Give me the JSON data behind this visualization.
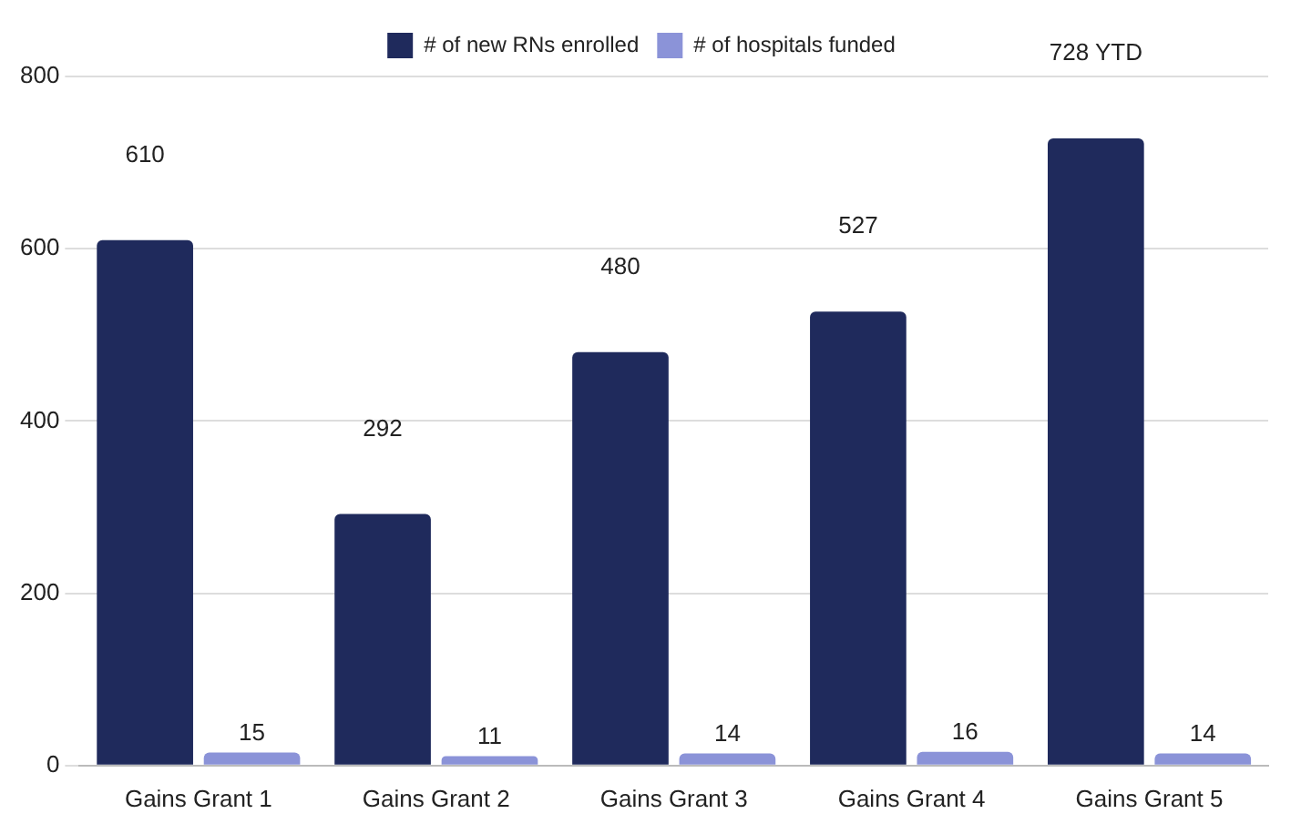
{
  "chart_data": {
    "type": "bar",
    "categories": [
      "Gains Grant 1",
      "Gains Grant 2",
      "Gains Grant 3",
      "Gains Grant 4",
      "Gains Grant 5"
    ],
    "series": [
      {
        "name": "# of new RNs enrolled",
        "color": "#1f2a5c",
        "values": [
          610,
          292,
          480,
          527,
          728
        ],
        "value_labels": [
          "610",
          "292",
          "480",
          "527",
          "728 YTD"
        ]
      },
      {
        "name": "# of hospitals funded",
        "color": "#8b93d8",
        "values": [
          15,
          11,
          14,
          16,
          14
        ],
        "value_labels": [
          "15",
          "11",
          "14",
          "16",
          "14"
        ]
      }
    ],
    "ylim": [
      0,
      800
    ],
    "yticks": [
      0,
      200,
      400,
      600,
      800
    ],
    "grid": "y",
    "legend": "top"
  }
}
